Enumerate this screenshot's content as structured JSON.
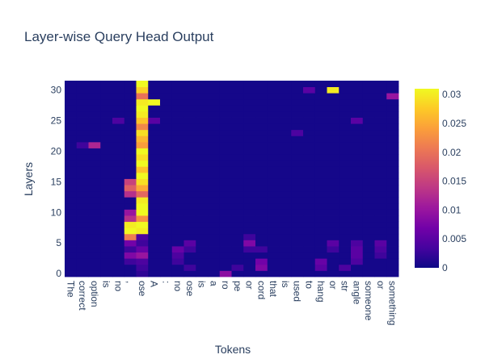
{
  "chart_data": {
    "type": "heatmap",
    "title": "Layer-wise Query Head Output",
    "xlabel": "Tokens",
    "ylabel": "Layers",
    "x_tokens": [
      "The",
      "correct",
      "option",
      "is",
      "no",
      ",",
      "ose",
      "A",
      ":",
      "no",
      "ose",
      "is",
      "a",
      "ro",
      "pe",
      "or",
      "cord",
      "that",
      "is",
      "used",
      "to",
      "hang",
      "or",
      "str",
      "angle",
      "someone",
      "or",
      "something"
    ],
    "y_ticks": [
      0,
      5,
      10,
      15,
      20,
      25,
      30
    ],
    "y_range": [
      0,
      31
    ],
    "colorbar": {
      "ticks": [
        0,
        0.005,
        0.01,
        0.015,
        0.02,
        0.025,
        0.03
      ],
      "tick_labels": [
        "0",
        "0.005",
        "0.01",
        "0.015",
        "0.02",
        "0.025",
        "0.03"
      ],
      "min": 0,
      "max": 0.031
    },
    "colorscale": [
      "#0d0887",
      "#46039f",
      "#7201a8",
      "#9c179e",
      "#bd3786",
      "#d8576b",
      "#ed7953",
      "#fb9f3a",
      "#fdca26",
      "#f0f921"
    ],
    "background_value": 0.0005,
    "cells": [
      {
        "x": 6,
        "y": 31,
        "v": 0.031
      },
      {
        "x": 6,
        "y": 30,
        "v": 0.028
      },
      {
        "x": 6,
        "y": 29,
        "v": 0.02
      },
      {
        "x": 6,
        "y": 28,
        "v": 0.03
      },
      {
        "x": 6,
        "y": 27,
        "v": 0.031
      },
      {
        "x": 6,
        "y": 26,
        "v": 0.03
      },
      {
        "x": 6,
        "y": 25,
        "v": 0.027
      },
      {
        "x": 6,
        "y": 24,
        "v": 0.022
      },
      {
        "x": 6,
        "y": 23,
        "v": 0.029
      },
      {
        "x": 6,
        "y": 22,
        "v": 0.026
      },
      {
        "x": 6,
        "y": 21,
        "v": 0.024
      },
      {
        "x": 6,
        "y": 20,
        "v": 0.031
      },
      {
        "x": 6,
        "y": 19,
        "v": 0.029
      },
      {
        "x": 6,
        "y": 18,
        "v": 0.031
      },
      {
        "x": 6,
        "y": 17,
        "v": 0.027
      },
      {
        "x": 6,
        "y": 16,
        "v": 0.031
      },
      {
        "x": 6,
        "y": 15,
        "v": 0.029
      },
      {
        "x": 6,
        "y": 14,
        "v": 0.025
      },
      {
        "x": 6,
        "y": 13,
        "v": 0.019
      },
      {
        "x": 6,
        "y": 12,
        "v": 0.03
      },
      {
        "x": 6,
        "y": 11,
        "v": 0.031
      },
      {
        "x": 6,
        "y": 10,
        "v": 0.031
      },
      {
        "x": 6,
        "y": 9,
        "v": 0.023
      },
      {
        "x": 6,
        "y": 8,
        "v": 0.031
      },
      {
        "x": 6,
        "y": 7,
        "v": 0.03
      },
      {
        "x": 6,
        "y": 6,
        "v": 0.004
      },
      {
        "x": 6,
        "y": 5,
        "v": 0.003
      },
      {
        "x": 6,
        "y": 4,
        "v": 0.006
      },
      {
        "x": 6,
        "y": 3,
        "v": 0.01
      },
      {
        "x": 6,
        "y": 2,
        "v": 0.004
      },
      {
        "x": 6,
        "y": 1,
        "v": 0.003
      },
      {
        "x": 6,
        "y": 0,
        "v": 0.002
      },
      {
        "x": 5,
        "y": 15,
        "v": 0.015
      },
      {
        "x": 5,
        "y": 14,
        "v": 0.018
      },
      {
        "x": 5,
        "y": 13,
        "v": 0.013
      },
      {
        "x": 5,
        "y": 10,
        "v": 0.01
      },
      {
        "x": 5,
        "y": 9,
        "v": 0.013
      },
      {
        "x": 5,
        "y": 8,
        "v": 0.03
      },
      {
        "x": 5,
        "y": 7,
        "v": 0.031
      },
      {
        "x": 5,
        "y": 6,
        "v": 0.021
      },
      {
        "x": 5,
        "y": 5,
        "v": 0.007
      },
      {
        "x": 5,
        "y": 4,
        "v": 0.003
      },
      {
        "x": 5,
        "y": 3,
        "v": 0.008
      },
      {
        "x": 5,
        "y": 2,
        "v": 0.003
      },
      {
        "x": 7,
        "y": 28,
        "v": 0.031
      },
      {
        "x": 7,
        "y": 25,
        "v": 0.005
      },
      {
        "x": 2,
        "y": 21,
        "v": 0.012
      },
      {
        "x": 1,
        "y": 21,
        "v": 0.003
      },
      {
        "x": 22,
        "y": 30,
        "v": 0.03
      },
      {
        "x": 20,
        "y": 30,
        "v": 0.005
      },
      {
        "x": 27,
        "y": 29,
        "v": 0.01
      },
      {
        "x": 24,
        "y": 25,
        "v": 0.005
      },
      {
        "x": 19,
        "y": 23,
        "v": 0.004
      },
      {
        "x": 4,
        "y": 25,
        "v": 0.004
      },
      {
        "x": 9,
        "y": 4,
        "v": 0.006
      },
      {
        "x": 9,
        "y": 3,
        "v": 0.004
      },
      {
        "x": 9,
        "y": 2,
        "v": 0.003
      },
      {
        "x": 10,
        "y": 5,
        "v": 0.005
      },
      {
        "x": 10,
        "y": 4,
        "v": 0.003
      },
      {
        "x": 10,
        "y": 1,
        "v": 0.003
      },
      {
        "x": 13,
        "y": 0,
        "v": 0.009
      },
      {
        "x": 14,
        "y": 1,
        "v": 0.003
      },
      {
        "x": 15,
        "y": 6,
        "v": 0.003
      },
      {
        "x": 15,
        "y": 5,
        "v": 0.008
      },
      {
        "x": 15,
        "y": 4,
        "v": 0.003
      },
      {
        "x": 16,
        "y": 4,
        "v": 0.003
      },
      {
        "x": 16,
        "y": 2,
        "v": 0.007
      },
      {
        "x": 16,
        "y": 1,
        "v": 0.008
      },
      {
        "x": 21,
        "y": 2,
        "v": 0.006
      },
      {
        "x": 21,
        "y": 1,
        "v": 0.005
      },
      {
        "x": 22,
        "y": 5,
        "v": 0.005
      },
      {
        "x": 22,
        "y": 4,
        "v": 0.003
      },
      {
        "x": 23,
        "y": 1,
        "v": 0.004
      },
      {
        "x": 24,
        "y": 5,
        "v": 0.004
      },
      {
        "x": 24,
        "y": 4,
        "v": 0.005
      },
      {
        "x": 24,
        "y": 3,
        "v": 0.005
      },
      {
        "x": 24,
        "y": 2,
        "v": 0.004
      },
      {
        "x": 26,
        "y": 5,
        "v": 0.005
      },
      {
        "x": 26,
        "y": 4,
        "v": 0.004
      },
      {
        "x": 26,
        "y": 3,
        "v": 0.003
      }
    ]
  }
}
